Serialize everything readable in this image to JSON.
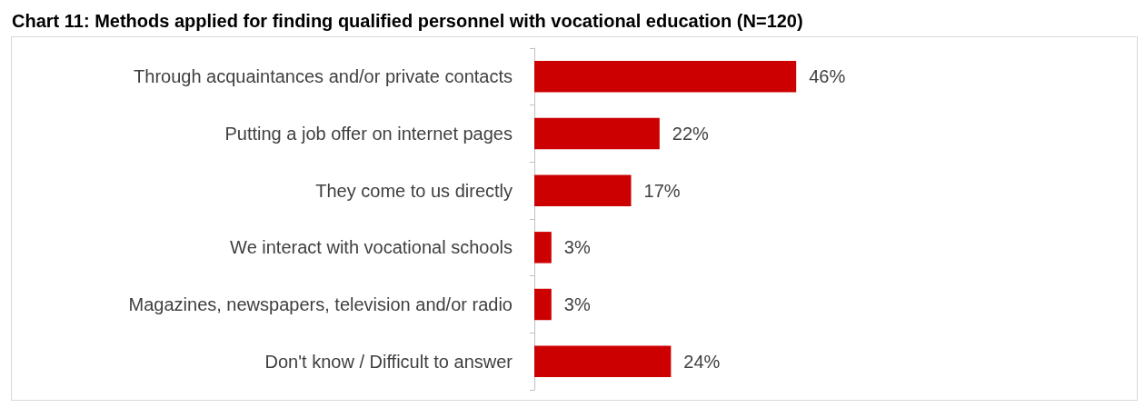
{
  "chart_data": {
    "type": "bar",
    "orientation": "horizontal",
    "title": "Chart 11: Methods applied for finding qualified personnel with vocational education (N=120)",
    "categories": [
      "Through acquaintances and/or private contacts",
      "Putting a job offer on internet pages",
      "They come to us directly",
      "We interact with vocational schools",
      "Magazines, newspapers, television and/or radio",
      "Don't know / Difficult to answer"
    ],
    "values": [
      46,
      22,
      17,
      3,
      3,
      24
    ],
    "color": "#cc0000",
    "data_labels": true,
    "value_labels": [
      "46%",
      "22%",
      "17%",
      "3%",
      "3%",
      "24%"
    ]
  }
}
